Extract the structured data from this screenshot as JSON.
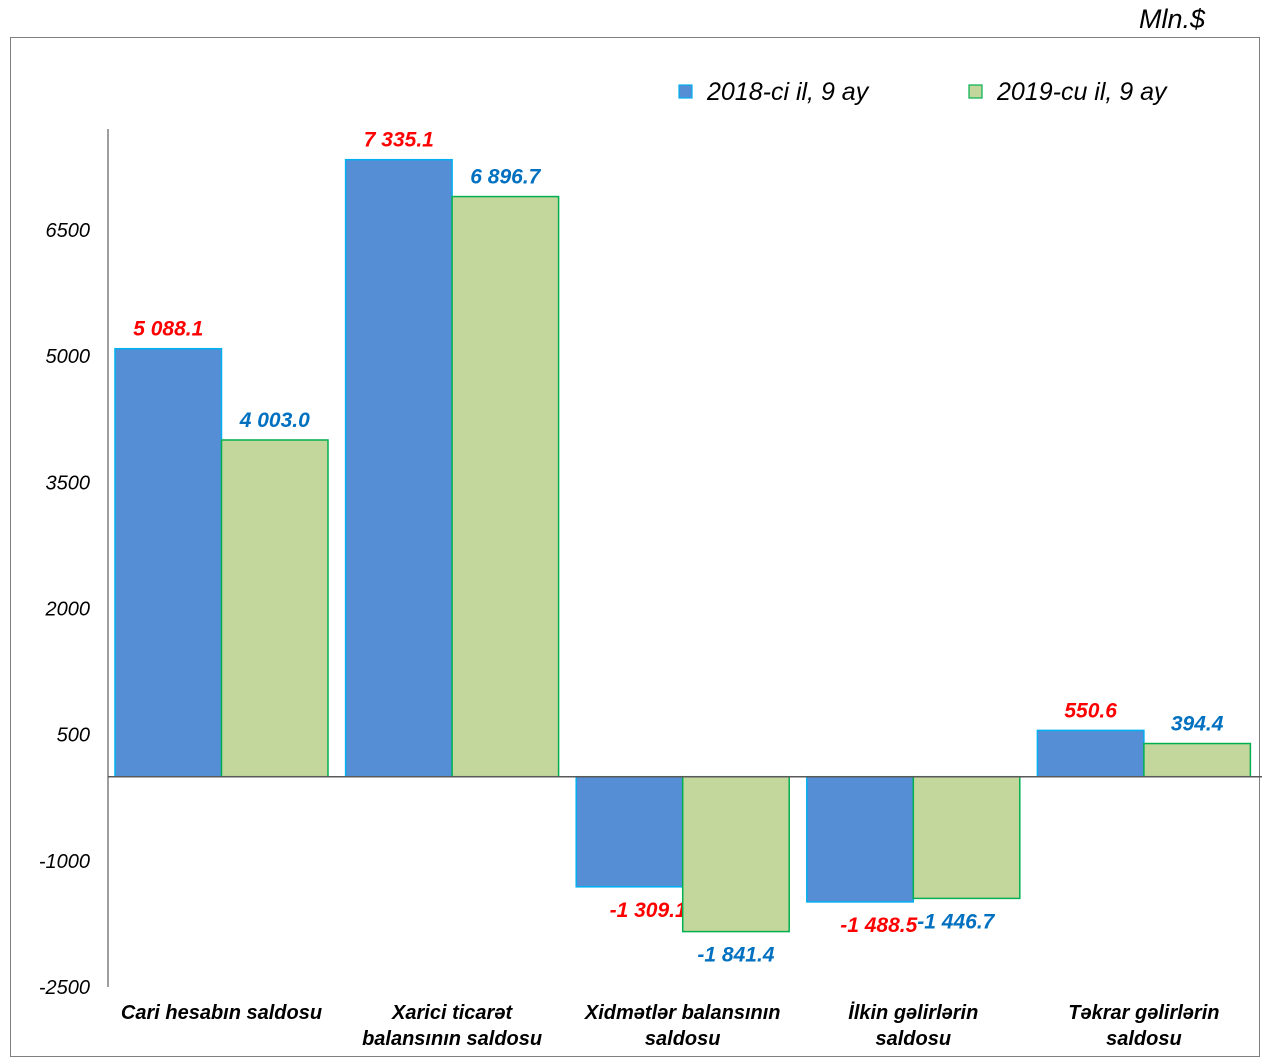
{
  "unit_label": "Mln.$",
  "colors": {
    "series1_fill": "#558ed5",
    "series1_stroke": "#00b0f0",
    "series2_fill": "#c3d69b",
    "series2_stroke": "#00b050",
    "label1": "#ff0000",
    "label2": "#0070c0"
  },
  "chart_data": {
    "type": "bar",
    "title": "",
    "xlabel": "",
    "ylabel": "",
    "ylim": [
      -2500,
      7700
    ],
    "yticks": [
      6500,
      5000,
      3500,
      2000,
      500,
      -1000,
      -2500
    ],
    "grid": false,
    "legend_position": "top-right",
    "categories": [
      [
        "Cari hesabın saldosu"
      ],
      [
        "Xarici ticarət",
        "balansının saldosu"
      ],
      [
        "Xidmətlər balansının",
        "saldosu"
      ],
      [
        "İlkin gəlirlərin",
        "saldosu"
      ],
      [
        "Təkrar gəlirlərin",
        "saldosu"
      ]
    ],
    "series": [
      {
        "name": "2018-ci il, 9 ay",
        "values": [
          5088.1,
          7335.1,
          -1309.1,
          -1488.5,
          550.6
        ],
        "labels": [
          "5 088.1",
          "7 335.1",
          "-1 309.1",
          "-1 488.5",
          "550.6"
        ]
      },
      {
        "name": "2019-cu il, 9 ay",
        "values": [
          4003.0,
          6896.7,
          -1841.4,
          -1446.7,
          394.4
        ],
        "labels": [
          "4 003.0",
          "6 896.7",
          "-1 841.4",
          "-1 446.7",
          "394.4"
        ]
      }
    ]
  }
}
